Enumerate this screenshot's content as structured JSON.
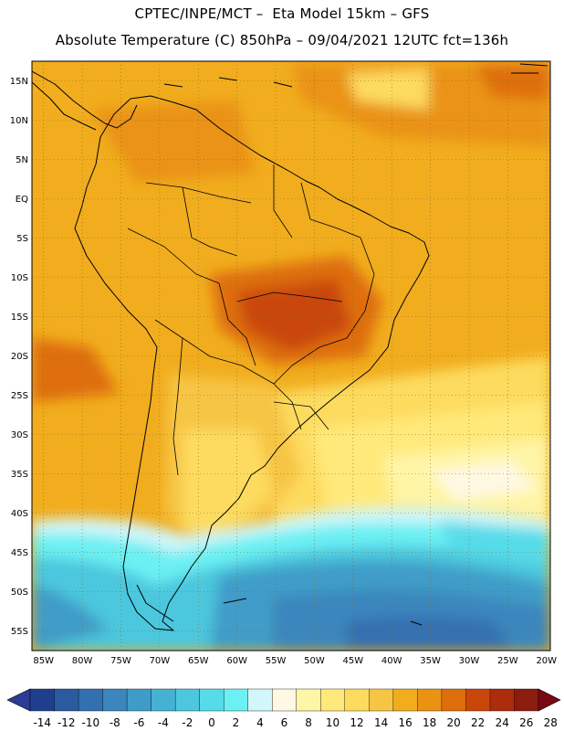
{
  "header": {
    "line1": "CPTEC/INPE/MCT –  Eta Model 15km – GFS",
    "line2": "Absolute Temperature (C) 850hPa – 09/04/2021 12UTC fct=136h"
  },
  "map": {
    "region": "South America",
    "variable": "Absolute Temperature (C) 850hPa",
    "lat_labels": [
      "15N",
      "10N",
      "5N",
      "EQ",
      "5S",
      "10S",
      "15S",
      "20S",
      "25S",
      "30S",
      "35S",
      "40S",
      "45S",
      "50S",
      "55S"
    ],
    "lat_values": [
      15,
      10,
      5,
      0,
      -5,
      -10,
      -15,
      -20,
      -25,
      -30,
      -35,
      -40,
      -45,
      -50,
      -55
    ],
    "lon_labels": [
      "85W",
      "80W",
      "75W",
      "70W",
      "65W",
      "60W",
      "55W",
      "50W",
      "45W",
      "40W",
      "35W",
      "30W",
      "25W",
      "20W"
    ],
    "lon_values": [
      -85,
      -80,
      -75,
      -70,
      -65,
      -60,
      -55,
      -50,
      -45,
      -40,
      -35,
      -30,
      -25,
      -20
    ],
    "lat_range": [
      -57.5,
      17.5
    ],
    "lon_range": [
      -86.5,
      -19.5
    ]
  },
  "colorbar": {
    "ticks": [
      "-14",
      "-12",
      "-10",
      "-8",
      "-6",
      "-4",
      "-2",
      "0",
      "2",
      "4",
      "6",
      "8",
      "10",
      "12",
      "14",
      "16",
      "18",
      "20",
      "22",
      "24",
      "26",
      "28"
    ],
    "colors": [
      "#1f3f8e",
      "#2c5aa0",
      "#3470b0",
      "#3a86bd",
      "#3f9cc8",
      "#45b2d3",
      "#4cc7de",
      "#56dbe9",
      "#6cf0f3",
      "#d2f6fa",
      "#fff8e3",
      "#fff5a6",
      "#ffe97a",
      "#fddb5f",
      "#f7c544",
      "#f1ad1e",
      "#ea9313",
      "#de6e0a",
      "#c9470a",
      "#ac2c0c",
      "#8c1c0e"
    ],
    "under_color": "#2b3c93",
    "over_color": "#7a0a12"
  }
}
